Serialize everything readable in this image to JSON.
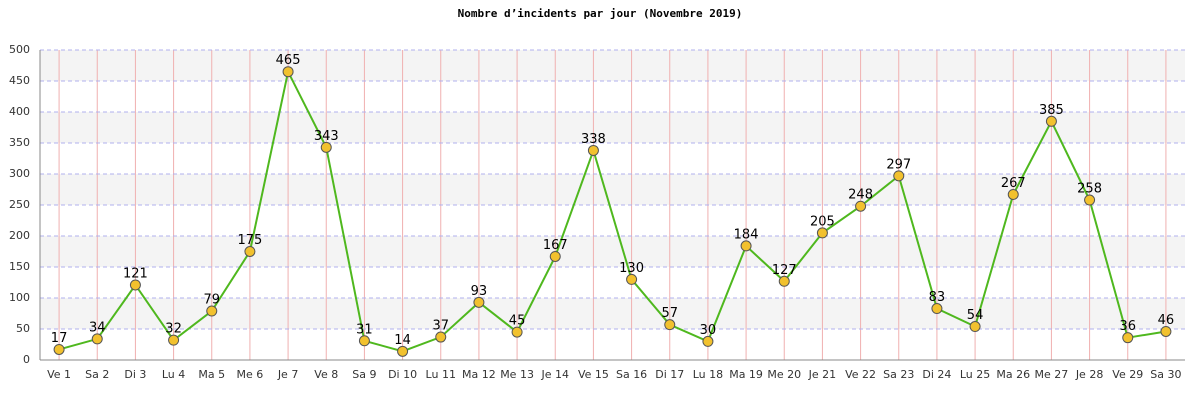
{
  "chart_data": {
    "type": "line",
    "title": "Nombre d’incidents par jour (Novembre 2019)",
    "categories": [
      "Ve 1",
      "Sa 2",
      "Di 3",
      "Lu 4",
      "Ma 5",
      "Me 6",
      "Je 7",
      "Ve 8",
      "Sa 9",
      "Di 10",
      "Lu 11",
      "Ma 12",
      "Me 13",
      "Je 14",
      "Ve 15",
      "Sa 16",
      "Di 17",
      "Lu 18",
      "Ma 19",
      "Me 20",
      "Je 21",
      "Ve 22",
      "Sa 23",
      "Di 24",
      "Lu 25",
      "Ma 26",
      "Me 27",
      "Je 28",
      "Ve 29",
      "Sa 30"
    ],
    "values": [
      17,
      34,
      121,
      32,
      79,
      175,
      465,
      343,
      31,
      14,
      37,
      93,
      45,
      167,
      338,
      130,
      57,
      30,
      184,
      127,
      205,
      248,
      297,
      83,
      54,
      267,
      385,
      258,
      36,
      46
    ],
    "color": "#4fb81e",
    "marker_color": "#f2c12e",
    "ylim": [
      0,
      500
    ],
    "yticks": [
      0,
      50,
      100,
      150,
      200,
      250,
      300,
      350,
      400,
      450,
      500
    ],
    "grid": true
  }
}
